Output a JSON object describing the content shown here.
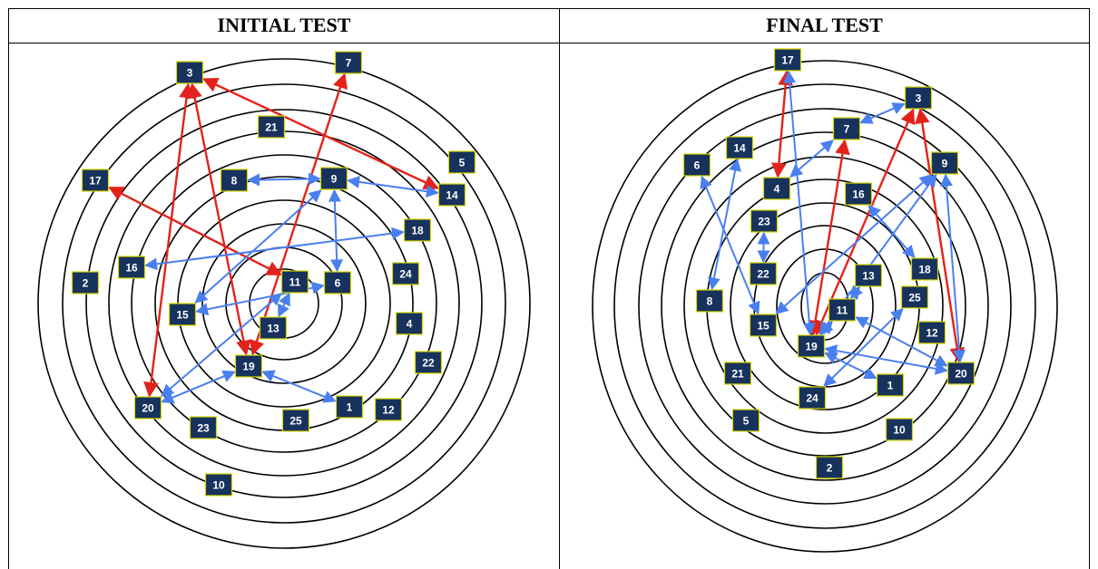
{
  "colors": {
    "negative": "#e3231b",
    "positive": "#4a7ff0",
    "node_fill": "#17325c",
    "node_border": "#d8d800"
  },
  "panels": [
    {
      "id": "left",
      "title": "INITIAL TEST",
      "nodes": [
        "1",
        "2",
        "3",
        "4",
        "5",
        "6",
        "7",
        "8",
        "9",
        "10",
        "11",
        "12",
        "13",
        "14",
        "15",
        "16",
        "17",
        "18",
        "19",
        "20",
        "21",
        "22",
        "23",
        "24",
        "25"
      ],
      "links": [
        {
          "from": "3",
          "to": "14",
          "type": "negative",
          "dir": "both"
        },
        {
          "from": "3",
          "to": "19",
          "type": "negative",
          "dir": "both"
        },
        {
          "from": "3",
          "to": "20",
          "type": "negative",
          "dir": "both"
        },
        {
          "from": "7",
          "to": "19",
          "type": "negative",
          "dir": "both"
        },
        {
          "from": "17",
          "to": "11",
          "type": "negative",
          "dir": "both"
        },
        {
          "from": "8",
          "to": "9",
          "type": "positive",
          "dir": "both"
        },
        {
          "from": "9",
          "to": "14",
          "type": "positive",
          "dir": "both"
        },
        {
          "from": "9",
          "to": "6",
          "type": "positive",
          "dir": "both"
        },
        {
          "from": "9",
          "to": "15",
          "type": "positive",
          "dir": "both"
        },
        {
          "from": "18",
          "to": "16",
          "type": "positive",
          "dir": "both"
        },
        {
          "from": "15",
          "to": "6",
          "type": "positive",
          "dir": "both"
        },
        {
          "from": "13",
          "to": "11",
          "type": "positive",
          "dir": "both"
        },
        {
          "from": "11",
          "to": "20",
          "type": "positive",
          "dir": "both"
        },
        {
          "from": "19",
          "to": "20",
          "type": "positive",
          "dir": "both"
        },
        {
          "from": "19",
          "to": "1",
          "type": "positive",
          "dir": "both"
        }
      ]
    },
    {
      "id": "right",
      "title": "FINAL TEST",
      "nodes": [
        "1",
        "2",
        "3",
        "4",
        "5",
        "6",
        "7",
        "8",
        "9",
        "10",
        "11",
        "12",
        "13",
        "14",
        "15",
        "16",
        "17",
        "18",
        "19",
        "20",
        "21",
        "22",
        "23",
        "24",
        "25"
      ],
      "links": [
        {
          "from": "17",
          "to": "4",
          "type": "negative",
          "dir": "both"
        },
        {
          "from": "3",
          "to": "19",
          "type": "negative",
          "dir": "both"
        },
        {
          "from": "3",
          "to": "20",
          "type": "negative",
          "dir": "both"
        },
        {
          "from": "7",
          "to": "19",
          "type": "negative",
          "dir": "both"
        },
        {
          "from": "17",
          "to": "19",
          "type": "positive",
          "dir": "both"
        },
        {
          "from": "3",
          "to": "7",
          "type": "positive",
          "dir": "both"
        },
        {
          "from": "7",
          "to": "4",
          "type": "positive",
          "dir": "both"
        },
        {
          "from": "14",
          "to": "8",
          "type": "positive",
          "dir": "both"
        },
        {
          "from": "6",
          "to": "15",
          "type": "positive",
          "dir": "both"
        },
        {
          "from": "9",
          "to": "15",
          "type": "positive",
          "dir": "both"
        },
        {
          "from": "9",
          "to": "20",
          "type": "positive",
          "dir": "both"
        },
        {
          "from": "9",
          "to": "19",
          "type": "positive",
          "dir": "both"
        },
        {
          "from": "16",
          "to": "18",
          "type": "positive",
          "dir": "both"
        },
        {
          "from": "23",
          "to": "22",
          "type": "positive",
          "dir": "both"
        },
        {
          "from": "13",
          "to": "11",
          "type": "positive",
          "dir": "both"
        },
        {
          "from": "11",
          "to": "20",
          "type": "positive",
          "dir": "both"
        },
        {
          "from": "19",
          "to": "20",
          "type": "positive",
          "dir": "both"
        },
        {
          "from": "19",
          "to": "1",
          "type": "positive",
          "dir": "both"
        },
        {
          "from": "24",
          "to": "25",
          "type": "positive",
          "dir": "both"
        },
        {
          "from": "19",
          "to": "11",
          "type": "positive",
          "dir": "both"
        }
      ]
    }
  ]
}
